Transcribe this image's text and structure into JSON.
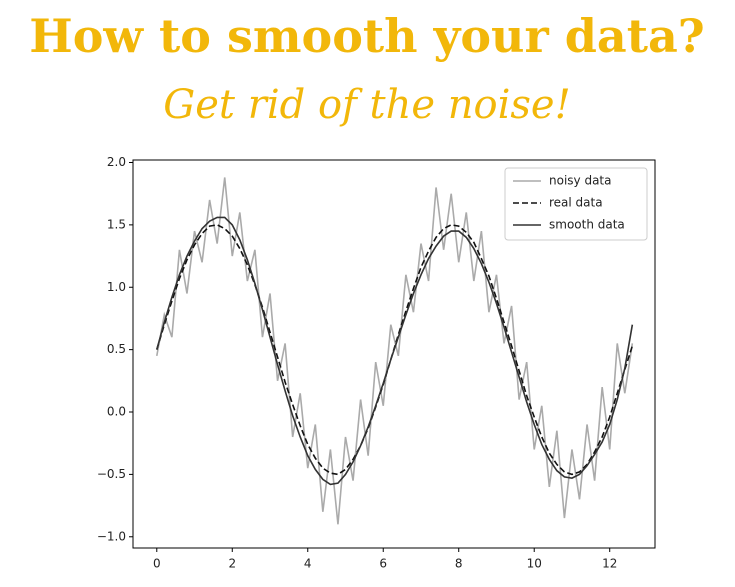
{
  "chart_data": {
    "type": "line",
    "title": "How to smooth your data?",
    "subtitle": "Get rid of the noise!",
    "x": [
      0,
      0.2,
      0.4,
      0.6,
      0.8,
      1,
      1.2,
      1.4,
      1.6,
      1.8,
      2,
      2.2,
      2.4,
      2.6,
      2.8,
      3,
      3.2,
      3.4,
      3.6,
      3.8,
      4,
      4.2,
      4.4,
      4.6,
      4.8,
      5,
      5.2,
      5.4,
      5.6,
      5.8,
      6,
      6.2,
      6.4,
      6.6,
      6.8,
      7,
      7.2,
      7.4,
      7.6,
      7.8,
      8,
      8.2,
      8.4,
      8.6,
      8.8,
      9,
      9.2,
      9.4,
      9.6,
      9.8,
      10,
      10.2,
      10.4,
      10.6,
      10.8,
      11,
      11.2,
      11.4,
      11.6,
      11.8,
      12,
      12.2,
      12.4,
      12.6
    ],
    "series": [
      {
        "name": "noisy data",
        "color": "#aaaaaa",
        "linestyle": "solid",
        "values": [
          0.45,
          0.78,
          0.6,
          1.3,
          0.95,
          1.45,
          1.2,
          1.7,
          1.35,
          1.88,
          1.25,
          1.6,
          1.05,
          1.3,
          0.6,
          0.95,
          0.25,
          0.55,
          -0.2,
          0.15,
          -0.45,
          -0.1,
          -0.8,
          -0.3,
          -0.9,
          -0.2,
          -0.55,
          0.1,
          -0.35,
          0.4,
          0.05,
          0.7,
          0.45,
          1.1,
          0.8,
          1.35,
          1.05,
          1.8,
          1.3,
          1.75,
          1.2,
          1.6,
          1.05,
          1.45,
          0.8,
          1.1,
          0.55,
          0.85,
          0.1,
          0.4,
          -0.3,
          0.05,
          -0.6,
          -0.15,
          -0.85,
          -0.3,
          -0.7,
          -0.1,
          -0.55,
          0.2,
          -0.3,
          0.55,
          0.15,
          0.55
        ]
      },
      {
        "name": "real data",
        "color": "#111111",
        "linestyle": "dashed",
        "values": [
          0.5,
          0.7,
          0.89,
          1.07,
          1.22,
          1.34,
          1.43,
          1.49,
          1.5,
          1.47,
          1.41,
          1.31,
          1.18,
          1.02,
          0.84,
          0.64,
          0.44,
          0.24,
          0.06,
          -0.11,
          -0.26,
          -0.37,
          -0.45,
          -0.49,
          -0.5,
          -0.46,
          -0.38,
          -0.27,
          -0.13,
          0.04,
          0.22,
          0.42,
          0.62,
          0.81,
          0.99,
          1.16,
          1.29,
          1.4,
          1.47,
          1.5,
          1.49,
          1.44,
          1.36,
          1.23,
          1.09,
          0.91,
          0.72,
          0.53,
          0.33,
          0.13,
          -0.04,
          -0.2,
          -0.33,
          -0.42,
          -0.48,
          -0.5,
          -0.48,
          -0.42,
          -0.32,
          -0.2,
          -0.04,
          0.15,
          0.34,
          0.53
        ]
      },
      {
        "name": "smooth data",
        "color": "#333333",
        "linestyle": "solid",
        "values": [
          0.5,
          0.72,
          0.92,
          1.1,
          1.25,
          1.37,
          1.47,
          1.53,
          1.56,
          1.56,
          1.5,
          1.38,
          1.22,
          1.03,
          0.82,
          0.6,
          0.38,
          0.17,
          -0.03,
          -0.2,
          -0.35,
          -0.46,
          -0.54,
          -0.58,
          -0.57,
          -0.5,
          -0.4,
          -0.27,
          -0.12,
          0.05,
          0.23,
          0.42,
          0.6,
          0.78,
          0.95,
          1.1,
          1.23,
          1.33,
          1.41,
          1.45,
          1.45,
          1.4,
          1.31,
          1.19,
          1.04,
          0.87,
          0.68,
          0.48,
          0.28,
          0.08,
          -0.1,
          -0.26,
          -0.38,
          -0.47,
          -0.52,
          -0.53,
          -0.5,
          -0.43,
          -0.34,
          -0.24,
          -0.1,
          0.1,
          0.35,
          0.7
        ]
      }
    ],
    "xlim": [
      -0.63,
      13.2
    ],
    "xticks": [
      0,
      2,
      4,
      6,
      8,
      10,
      12
    ],
    "ylim": [
      -1.09,
      2.02
    ],
    "yticks": [
      {
        "value": -1,
        "label": "−1.0"
      },
      {
        "value": -0.5,
        "label": "−0.5"
      },
      {
        "value": 0,
        "label": "0.0"
      },
      {
        "value": 0.5,
        "label": "0.5"
      },
      {
        "value": 1,
        "label": "1.0"
      },
      {
        "value": 1.5,
        "label": "1.5"
      },
      {
        "value": 2,
        "label": "2.0"
      }
    ],
    "legend": "upper right",
    "grid": false,
    "title_color": "#f2b70a"
  }
}
